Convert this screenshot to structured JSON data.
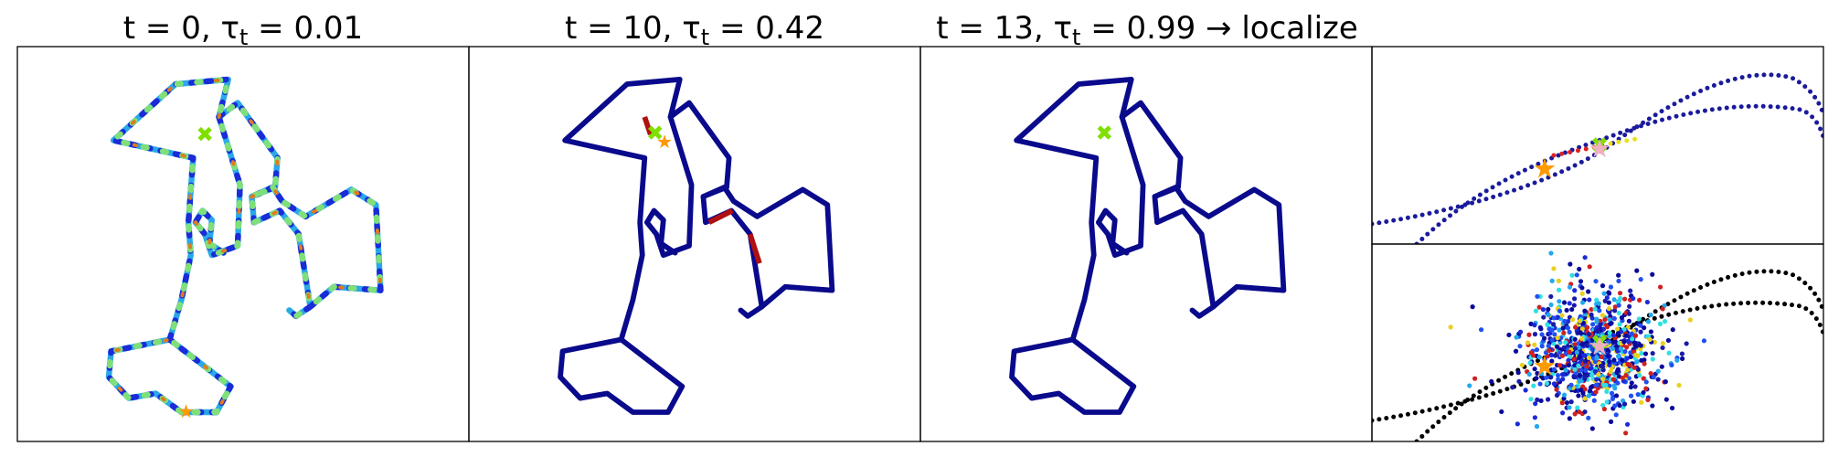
{
  "panels": [
    {
      "title": {
        "main": "t = 0, τ",
        "sub": "t",
        "rest": " = 0.01"
      }
    },
    {
      "title": {
        "main": "t = 10, τ",
        "sub": "t",
        "rest": " = 0.42"
      }
    },
    {
      "title": {
        "main": "t = 13, τ",
        "sub": "t",
        "rest": " = 0.99 → localize"
      }
    }
  ]
}
